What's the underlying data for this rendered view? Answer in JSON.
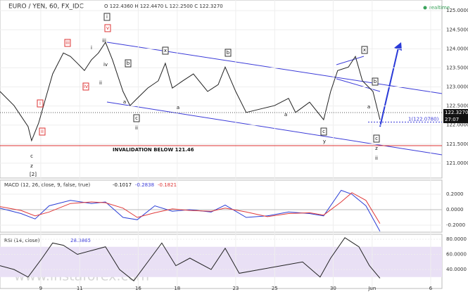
{
  "chart_data": [
    {
      "type": "line",
      "title": "EURO / YEN, 60, FX_IDC",
      "ohlc_text": "O 122.4360 H 122.4470 L 122.2500 C 122.3270",
      "status": "realtime",
      "x": [
        -2.09,
        -1.37,
        -0.65,
        -0.47,
        -0.11,
        0.25,
        0.61,
        1.16,
        1.52,
        1.88,
        2.24,
        2.6,
        2.96,
        3.32,
        3.68,
        4.22,
        4.58,
        4.95,
        5.49,
        6.03,
        6.39,
        6.75,
        7.29,
        7.83,
        8.56,
        9.1,
        9.46,
        10.0,
        10.54,
        11.26,
        11.99,
        12.71,
        13.07,
        13.79,
        14.51,
        14.87,
        15.23,
        15.78,
        16.14,
        16.5,
        17.04,
        17.4
      ],
      "series": [
        {
          "name": "EURJPY",
          "color": "#222222",
          "values": [
            122.88,
            122.51,
            121.96,
            121.59,
            122.05,
            122.7,
            123.34,
            123.89,
            123.8,
            123.62,
            123.43,
            123.71,
            123.89,
            124.17,
            123.71,
            122.88,
            122.51,
            122.7,
            122.97,
            123.16,
            123.62,
            122.97,
            123.16,
            123.34,
            122.88,
            123.06,
            123.52,
            122.88,
            122.33,
            122.42,
            122.51,
            122.7,
            122.33,
            122.6,
            122.14,
            122.88,
            123.43,
            123.52,
            123.8,
            123.16,
            122.88,
            122.14
          ]
        }
      ],
      "xlim": [
        -2.09,
        20.58
      ],
      "ylim": [
        120.61,
        125.28
      ],
      "yticks": [
        {
          "value": 121.0,
          "label": "121.0000"
        },
        {
          "value": 121.5,
          "label": "121.5000"
        },
        {
          "value": 122.0,
          "label": "122.0000"
        },
        {
          "value": 122.5,
          "label": "122.5000"
        },
        {
          "value": 123.0,
          "label": "123.0000"
        },
        {
          "value": 123.5,
          "label": "123.5000"
        },
        {
          "value": 124.0,
          "label": "124.0000"
        },
        {
          "value": 124.5,
          "label": "124.5000"
        },
        {
          "value": 125.0,
          "label": "125.0000"
        }
      ],
      "last_price": {
        "value": 122.327,
        "label": "122.3270"
      },
      "countdown": "27:07",
      "invalidation": {
        "value": 121.46,
        "label": "INVALIDATION BELOW 121.46"
      },
      "target": {
        "value": 122.078,
        "label": "1(122.0780)"
      },
      "annotations": [
        "c",
        "z",
        "[2]",
        "ii",
        "i",
        "iii",
        "iv",
        "i",
        "ii",
        "iii",
        "iv",
        "v",
        "i",
        "b",
        "a",
        "c",
        "ii",
        "x",
        "a",
        "b",
        "a",
        "c",
        "y",
        "x",
        "b",
        "a",
        "c",
        "z",
        "ii"
      ],
      "watermark": "www.instaforex.com"
    },
    {
      "type": "line",
      "title": "MACD (12, 26, close, 9, false, true)",
      "readout": [
        "-0.1017",
        "-0.2838",
        "-0.1821"
      ],
      "x": [
        -2.09,
        -1.01,
        -0.29,
        0.43,
        1.52,
        2.6,
        3.32,
        4.22,
        4.95,
        5.85,
        6.75,
        7.65,
        8.74,
        9.46,
        10.54,
        11.62,
        12.71,
        13.79,
        14.51,
        15.41,
        15.96,
        16.68,
        17.4
      ],
      "series": [
        {
          "name": "MACD",
          "color": "#2b3fd6",
          "values": [
            0.02,
            -0.05,
            -0.12,
            0.05,
            0.12,
            0.08,
            0.1,
            -0.1,
            -0.13,
            0.05,
            -0.02,
            0.0,
            -0.03,
            0.06,
            -0.1,
            -0.08,
            -0.03,
            -0.05,
            -0.08,
            0.25,
            0.2,
            0.05,
            -0.28
          ]
        },
        {
          "name": "Signal",
          "color": "#e03a3a",
          "values": [
            0.04,
            -0.01,
            -0.08,
            -0.03,
            0.08,
            0.1,
            0.09,
            0.02,
            -0.1,
            -0.04,
            0.01,
            -0.01,
            -0.02,
            0.02,
            -0.03,
            -0.09,
            -0.05,
            -0.04,
            -0.07,
            0.1,
            0.22,
            0.12,
            -0.18
          ]
        }
      ],
      "xlim": [
        -2.09,
        20.58
      ],
      "ylim": [
        -0.291,
        0.382
      ],
      "yticks": [
        {
          "value": -0.2,
          "label": "-0.2000"
        },
        {
          "value": 0,
          "label": "0.0000"
        },
        {
          "value": 0.2,
          "label": "0.2000"
        }
      ]
    },
    {
      "type": "line",
      "title": "RSI (14, close)",
      "readout": "28.3865",
      "x": [
        -2.09,
        -1.37,
        -0.65,
        0.07,
        0.61,
        1.16,
        1.88,
        2.6,
        3.32,
        4.04,
        4.77,
        5.49,
        6.21,
        6.93,
        7.65,
        8.74,
        9.46,
        10.18,
        11.26,
        12.35,
        13.43,
        14.33,
        14.87,
        15.6,
        16.32,
        16.86,
        17.4
      ],
      "series": [
        {
          "name": "RSI",
          "color": "#222222",
          "values": [
            45,
            40,
            30,
            55,
            75,
            72,
            60,
            65,
            70,
            40,
            25,
            50,
            75,
            45,
            55,
            40,
            68,
            35,
            40,
            45,
            50,
            30,
            55,
            82,
            70,
            45,
            28.4
          ]
        }
      ],
      "xlim": [
        -2.09,
        20.58
      ],
      "ylim": [
        14.9,
        86.5
      ],
      "band": [
        30,
        70
      ],
      "yticks": [
        {
          "value": 40,
          "label": "40.0000"
        },
        {
          "value": 60,
          "label": "60.0000"
        },
        {
          "value": 80,
          "label": "80.0000"
        }
      ],
      "xticks": [
        {
          "value": 0,
          "label": "9"
        },
        {
          "value": 2,
          "label": "11"
        },
        {
          "value": 5,
          "label": "16"
        },
        {
          "value": 7,
          "label": "18"
        },
        {
          "value": 10,
          "label": "23"
        },
        {
          "value": 12,
          "label": "25"
        },
        {
          "value": 15,
          "label": "30"
        },
        {
          "value": 17,
          "label": "Jun"
        },
        {
          "value": 20,
          "label": "6"
        }
      ]
    }
  ]
}
